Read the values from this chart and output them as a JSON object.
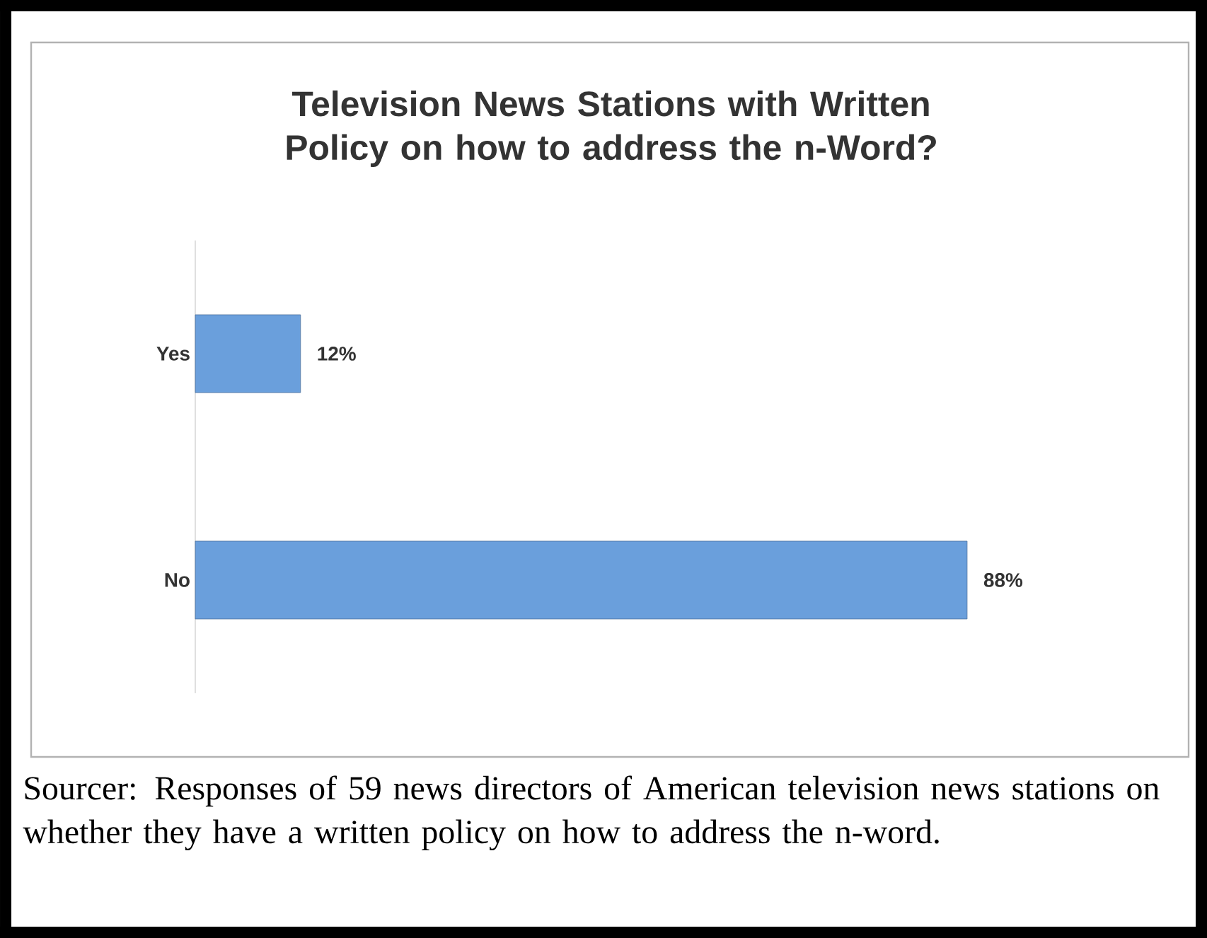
{
  "chart_data": {
    "type": "bar",
    "orientation": "horizontal",
    "title": "Television News Stations with Written Policy on how to address the n-Word?",
    "categories": [
      "Yes",
      "No"
    ],
    "values": [
      12,
      88
    ],
    "value_labels": [
      "12%",
      "88%"
    ],
    "color": "#6a9fdc",
    "annotations": [
      "Sourcer: Responses of 59 news directors of American television news stations on whether they have a written policy on how to address the n-word."
    ]
  }
}
